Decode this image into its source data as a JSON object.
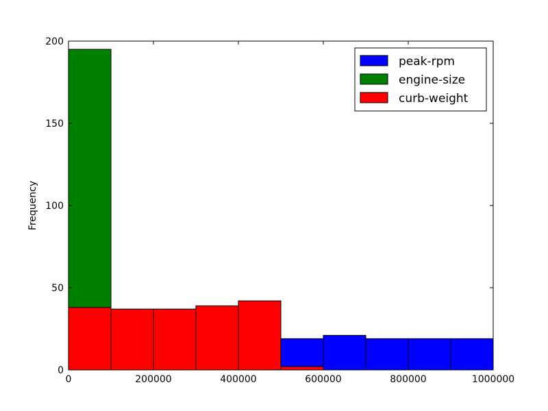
{
  "chart_data": {
    "type": "bar",
    "title": "",
    "xlabel": "",
    "ylabel": "Frequency",
    "xlim": [
      0,
      1000000
    ],
    "ylim": [
      0,
      200
    ],
    "xticks": [
      0,
      200000,
      400000,
      600000,
      800000,
      1000000
    ],
    "xtick_labels": [
      "0",
      "200000",
      "400000",
      "600000",
      "800000",
      "1000000"
    ],
    "yticks": [
      0,
      50,
      100,
      150,
      200
    ],
    "ytick_labels": [
      "0",
      "50",
      "100",
      "150",
      "200"
    ],
    "grid": false,
    "legend_position": "top-right",
    "bin_edges": [
      0,
      100000,
      200000,
      300000,
      400000,
      500000,
      600000,
      700000,
      800000,
      900000,
      1000000
    ],
    "series": [
      {
        "name": "peak-rpm",
        "color": "#0000ff",
        "values": [
          0,
          0,
          0,
          0,
          0,
          19,
          21,
          19,
          19,
          19
        ]
      },
      {
        "name": "engine-size",
        "color": "#008000",
        "values": [
          195,
          0,
          0,
          0,
          0,
          0,
          0,
          0,
          0,
          0
        ]
      },
      {
        "name": "curb-weight",
        "color": "#ff0000",
        "values": [
          38,
          37,
          37,
          39,
          42,
          2,
          0,
          0,
          0,
          0
        ]
      }
    ]
  }
}
